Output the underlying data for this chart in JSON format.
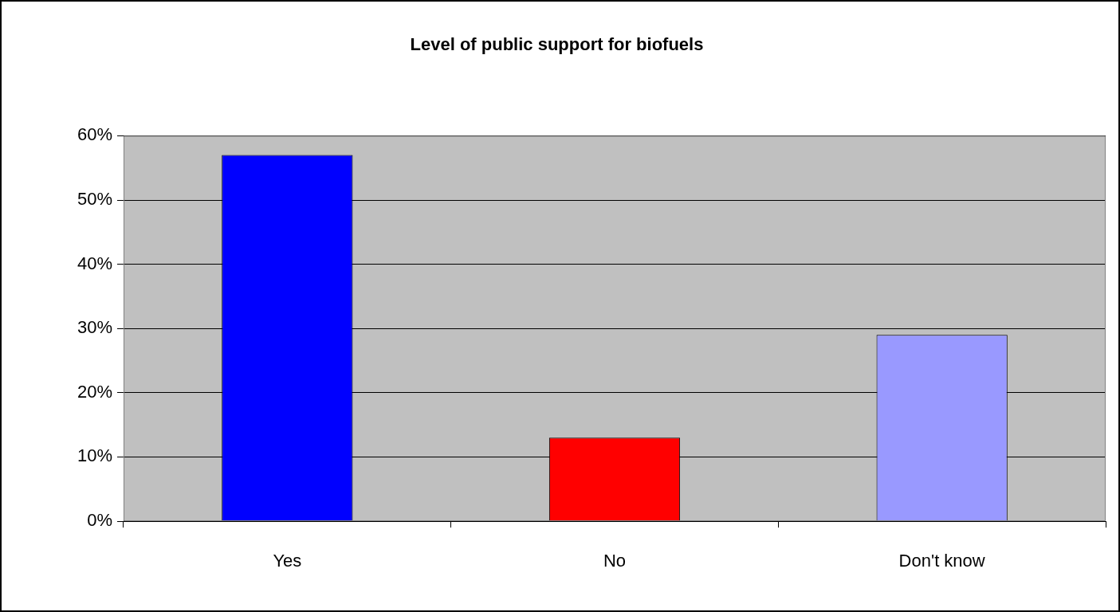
{
  "chart_data": {
    "type": "bar",
    "title": "Level of public support for biofuels",
    "categories": [
      "Yes",
      "No",
      "Don't know"
    ],
    "values": [
      57,
      13,
      29
    ],
    "colors": [
      "#0000ff",
      "#ff0000",
      "#9999ff"
    ],
    "ylim": [
      0,
      60
    ],
    "yticks": [
      {
        "value": 0,
        "label": "0%"
      },
      {
        "value": 10,
        "label": "10%"
      },
      {
        "value": 20,
        "label": "20%"
      },
      {
        "value": 30,
        "label": "30%"
      },
      {
        "value": 40,
        "label": "40%"
      },
      {
        "value": 50,
        "label": "50%"
      },
      {
        "value": 60,
        "label": "60%"
      }
    ],
    "grid": "y"
  }
}
